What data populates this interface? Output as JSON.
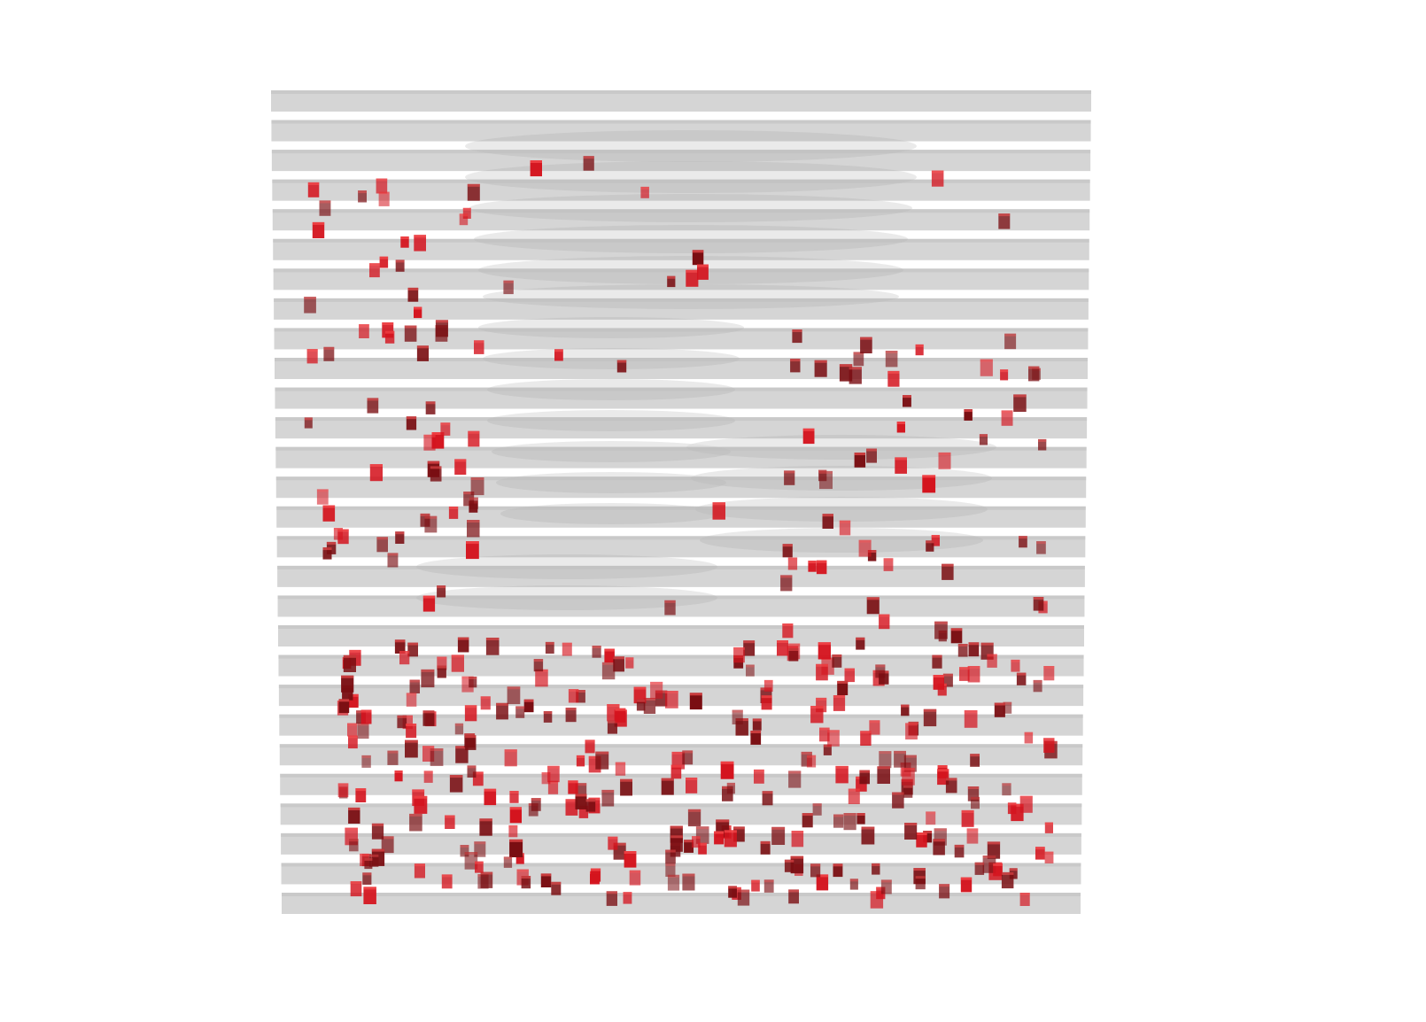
{
  "scene": {
    "background_color": "#ffffff",
    "slab_color": "#9a9a9a",
    "slab_edge_color": "#8a8a8a",
    "particle_color": "#d4141e",
    "particle_dark_color": "#7a0e12",
    "slab_count": 28,
    "particle_count": 430
  }
}
